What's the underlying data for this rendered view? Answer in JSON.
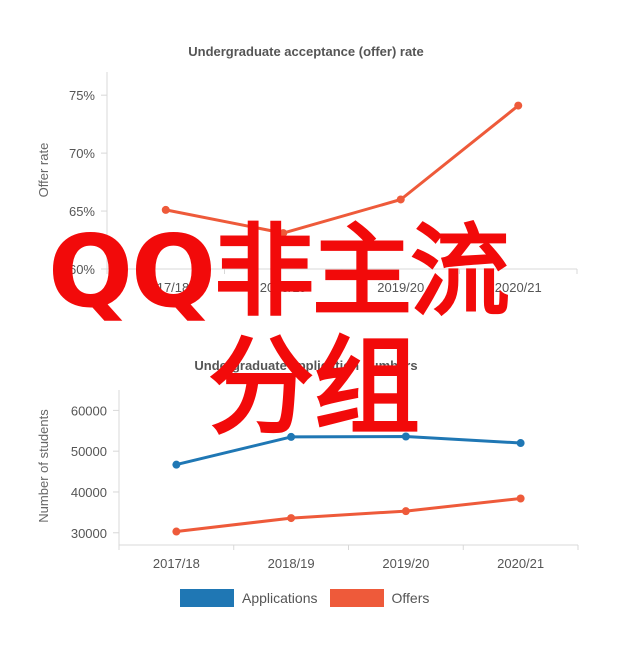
{
  "chart_data": [
    {
      "type": "line",
      "title": "Undergraduate acceptance (offer) rate",
      "ylabel": "Offer rate",
      "categories": [
        "2017/18",
        "2018/19",
        "2019/20",
        "2020/21"
      ],
      "y_ticks": [
        "60%",
        "65%",
        "70%",
        "75%"
      ],
      "ylim": [
        60,
        77
      ],
      "series": [
        {
          "values": [
            65.1,
            63.1,
            66.0,
            74.1
          ],
          "color": "#ee5a3a"
        }
      ]
    },
    {
      "type": "line",
      "title": "Undergraduate application numbers",
      "ylabel": "Number of students",
      "categories": [
        "2017/18",
        "2018/19",
        "2019/20",
        "2020/21"
      ],
      "y_ticks": [
        "30000",
        "40000",
        "50000",
        "60000"
      ],
      "ylim": [
        27000,
        65000
      ],
      "series": [
        {
          "name": "Applications",
          "values": [
            46700,
            53500,
            53600,
            52000
          ],
          "color": "#1f77b4"
        },
        {
          "name": "Offers",
          "values": [
            30300,
            33600,
            35300,
            38400
          ],
          "color": "#ee5a3a"
        }
      ]
    }
  ],
  "overlay": {
    "line1": "QQ非主流",
    "line2": "分组",
    "color": "#f20a0a"
  }
}
